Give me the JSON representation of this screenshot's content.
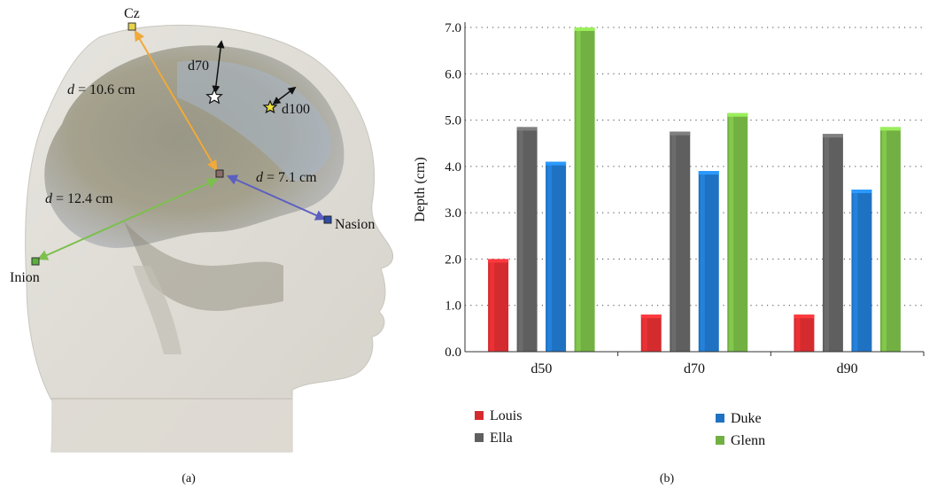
{
  "panel_a": {
    "caption": "(a)",
    "landmarks": [
      {
        "name": "Cz",
        "color": "#e8d44a"
      },
      {
        "name": "Nasion",
        "color": "#2f4da8"
      },
      {
        "name": "Inion",
        "color": "#5aae3c"
      }
    ],
    "distances": {
      "cz": {
        "label": "d",
        "value": "10.6 cm",
        "color": "#f0a93a"
      },
      "nasion": {
        "label": "d",
        "value": "7.1 cm",
        "color": "#5b5fc0"
      },
      "inion": {
        "label": "d",
        "value": "12.4 cm",
        "color": "#7cbf4e"
      }
    },
    "markers": [
      "d70",
      "d100"
    ]
  },
  "panel_b": {
    "caption": "(b)"
  },
  "chart_data": {
    "type": "bar",
    "categories": [
      "d50",
      "d70",
      "d90"
    ],
    "series": [
      {
        "name": "Louis",
        "color": "#d42b2f",
        "values": [
          2.0,
          0.8,
          0.8
        ]
      },
      {
        "name": "Ella",
        "color": "#5f5f5f",
        "values": [
          4.85,
          4.75,
          4.7
        ]
      },
      {
        "name": "Duke",
        "color": "#1f72c2",
        "values": [
          4.1,
          3.9,
          3.5
        ]
      },
      {
        "name": "Glenn",
        "color": "#72b043",
        "values": [
          7.0,
          5.15,
          4.85
        ]
      }
    ],
    "ylabel": "Depth (cm)",
    "xlabel": "",
    "ylim": [
      0,
      7
    ],
    "yticks": [
      "0.0",
      "1.0",
      "2.0",
      "3.0",
      "4.0",
      "5.0",
      "6.0",
      "7.0"
    ],
    "grid": "horizontal dotted",
    "legend": "bottom"
  }
}
